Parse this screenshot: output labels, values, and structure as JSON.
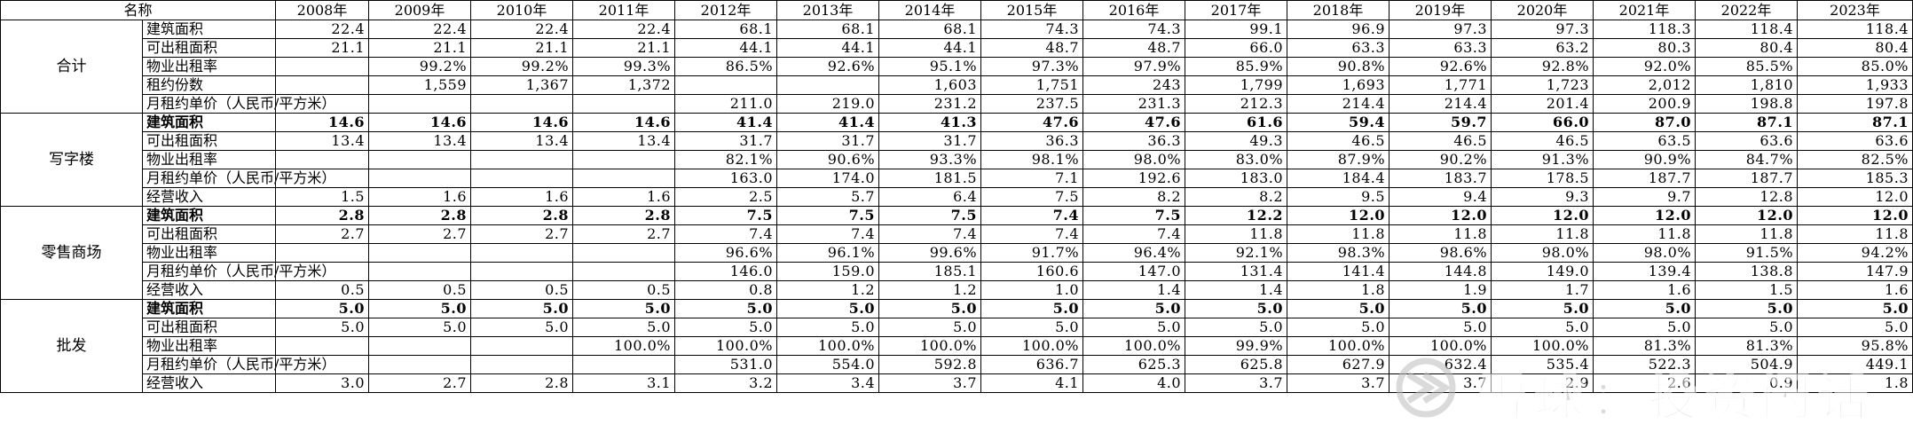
{
  "header": {
    "name_label": "名称",
    "years": [
      "2008年",
      "2009年",
      "2010年",
      "2011年",
      "2012年",
      "2013年",
      "2014年",
      "2015年",
      "2016年",
      "2017年",
      "2018年",
      "2019年",
      "2020年",
      "2021年",
      "2022年",
      "2023年"
    ]
  },
  "sections": [
    {
      "name": "合计",
      "rows": [
        {
          "metric": "建筑面积",
          "bold": false,
          "values": [
            "22.4",
            "22.4",
            "22.4",
            "22.4",
            "68.1",
            "68.1",
            "68.1",
            "74.3",
            "74.3",
            "99.1",
            "96.9",
            "97.3",
            "97.3",
            "118.3",
            "118.4",
            "118.4"
          ]
        },
        {
          "metric": "可出租面积",
          "bold": false,
          "values": [
            "21.1",
            "21.1",
            "21.1",
            "21.1",
            "44.1",
            "44.1",
            "44.1",
            "48.7",
            "48.7",
            "66.0",
            "63.3",
            "63.3",
            "63.2",
            "80.3",
            "80.4",
            "80.4"
          ]
        },
        {
          "metric": "物业出租率",
          "bold": false,
          "values": [
            "",
            "99.2%",
            "99.2%",
            "99.3%",
            "86.5%",
            "92.6%",
            "95.1%",
            "97.3%",
            "97.9%",
            "85.9%",
            "90.8%",
            "92.6%",
            "92.8%",
            "92.0%",
            "85.5%",
            "85.0%"
          ]
        },
        {
          "metric": "租约份数",
          "bold": false,
          "values": [
            "",
            "1,559",
            "1,367",
            "1,372",
            "",
            "",
            "1,603",
            "1,751",
            "243",
            "1,799",
            "1,693",
            "1,771",
            "1,723",
            "2,012",
            "1,810",
            "1,933"
          ]
        },
        {
          "metric": "月租约单价（人民币/平方米）",
          "bold": false,
          "wide": true,
          "values": [
            "",
            "",
            "",
            "",
            "211.0",
            "219.0",
            "231.2",
            "237.5",
            "231.3",
            "212.3",
            "214.4",
            "214.4",
            "201.4",
            "200.9",
            "198.8",
            "197.8"
          ]
        }
      ]
    },
    {
      "name": "写字楼",
      "rows": [
        {
          "metric": "建筑面积",
          "bold": true,
          "values": [
            "14.6",
            "14.6",
            "14.6",
            "14.6",
            "41.4",
            "41.4",
            "41.3",
            "47.6",
            "47.6",
            "61.6",
            "59.4",
            "59.7",
            "66.0",
            "87.0",
            "87.1",
            "87.1"
          ]
        },
        {
          "metric": "可出租面积",
          "bold": false,
          "values": [
            "13.4",
            "13.4",
            "13.4",
            "13.4",
            "31.7",
            "31.7",
            "31.7",
            "36.3",
            "36.3",
            "49.3",
            "46.5",
            "46.5",
            "46.5",
            "63.5",
            "63.6",
            "63.6"
          ]
        },
        {
          "metric": "物业出租率",
          "bold": false,
          "values": [
            "",
            "",
            "",
            "",
            "82.1%",
            "90.6%",
            "93.3%",
            "98.1%",
            "98.0%",
            "83.0%",
            "87.9%",
            "90.2%",
            "91.3%",
            "90.9%",
            "84.7%",
            "82.5%"
          ]
        },
        {
          "metric": "月租约单价（人民币/平方米）",
          "bold": false,
          "wide": true,
          "values": [
            "",
            "",
            "",
            "",
            "163.0",
            "174.0",
            "181.5",
            "7.1",
            "192.6",
            "183.0",
            "184.4",
            "183.7",
            "178.5",
            "187.7",
            "187.7",
            "185.3"
          ]
        },
        {
          "metric": "经营收入",
          "bold": false,
          "values": [
            "1.5",
            "1.6",
            "1.6",
            "1.6",
            "2.5",
            "5.7",
            "6.4",
            "7.5",
            "8.2",
            "8.2",
            "9.5",
            "9.4",
            "9.3",
            "9.7",
            "12.8",
            "12.0"
          ]
        }
      ]
    },
    {
      "name": "零售商场",
      "rows": [
        {
          "metric": "建筑面积",
          "bold": true,
          "values": [
            "2.8",
            "2.8",
            "2.8",
            "2.8",
            "7.5",
            "7.5",
            "7.5",
            "7.4",
            "7.5",
            "12.2",
            "12.0",
            "12.0",
            "12.0",
            "12.0",
            "12.0",
            "12.0"
          ]
        },
        {
          "metric": "可出租面积",
          "bold": false,
          "values": [
            "2.7",
            "2.7",
            "2.7",
            "2.7",
            "7.4",
            "7.4",
            "7.4",
            "7.4",
            "7.4",
            "11.8",
            "11.8",
            "11.8",
            "11.8",
            "11.8",
            "11.8",
            "11.8"
          ]
        },
        {
          "metric": "物业出租率",
          "bold": false,
          "values": [
            "",
            "",
            "",
            "",
            "96.6%",
            "96.1%",
            "99.6%",
            "91.7%",
            "96.4%",
            "92.1%",
            "98.3%",
            "98.6%",
            "98.0%",
            "98.0%",
            "91.5%",
            "94.2%"
          ]
        },
        {
          "metric": "月租约单价（人民币/平方米）",
          "bold": false,
          "wide": true,
          "values": [
            "",
            "",
            "",
            "",
            "146.0",
            "159.0",
            "185.1",
            "160.6",
            "147.0",
            "131.4",
            "141.4",
            "144.8",
            "149.0",
            "139.4",
            "138.8",
            "147.9"
          ]
        },
        {
          "metric": "经营收入",
          "bold": false,
          "values": [
            "0.5",
            "0.5",
            "0.5",
            "0.5",
            "0.8",
            "1.2",
            "1.2",
            "1.0",
            "1.4",
            "1.4",
            "1.8",
            "1.9",
            "1.7",
            "1.6",
            "1.5",
            "1.6"
          ]
        }
      ]
    },
    {
      "name": "批发",
      "rows": [
        {
          "metric": "建筑面积",
          "bold": true,
          "values": [
            "5.0",
            "5.0",
            "5.0",
            "5.0",
            "5.0",
            "5.0",
            "5.0",
            "5.0",
            "5.0",
            "5.0",
            "5.0",
            "5.0",
            "5.0",
            "5.0",
            "5.0",
            "5.0"
          ]
        },
        {
          "metric": "可出租面积",
          "bold": false,
          "values": [
            "5.0",
            "5.0",
            "5.0",
            "5.0",
            "5.0",
            "5.0",
            "5.0",
            "5.0",
            "5.0",
            "5.0",
            "5.0",
            "5.0",
            "5.0",
            "5.0",
            "5.0",
            "5.0"
          ]
        },
        {
          "metric": "物业出租率",
          "bold": false,
          "values": [
            "",
            "",
            "",
            "100.0%",
            "100.0%",
            "100.0%",
            "100.0%",
            "100.0%",
            "100.0%",
            "99.9%",
            "100.0%",
            "100.0%",
            "100.0%",
            "81.3%",
            "81.3%",
            "95.8%"
          ]
        },
        {
          "metric": "月租约单价（人民币/平方米）",
          "bold": false,
          "wide": true,
          "values": [
            "",
            "",
            "",
            "",
            "531.0",
            "554.0",
            "592.8",
            "636.7",
            "625.3",
            "625.8",
            "627.9",
            "632.4",
            "535.4",
            "522.3",
            "504.9",
            "449.1"
          ]
        },
        {
          "metric": "经营收入",
          "bold": false,
          "values": [
            "3.0",
            "2.7",
            "2.8",
            "3.1",
            "3.2",
            "3.4",
            "3.7",
            "4.1",
            "4.0",
            "3.7",
            "3.7",
            "3.7",
            "2.9",
            "2.6",
            "0.9",
            "1.8"
          ]
        }
      ]
    }
  ],
  "watermark": {
    "text": "雪球：投资闲话",
    "icon": "snowball-logo-icon",
    "color": "#bdbdbd"
  }
}
